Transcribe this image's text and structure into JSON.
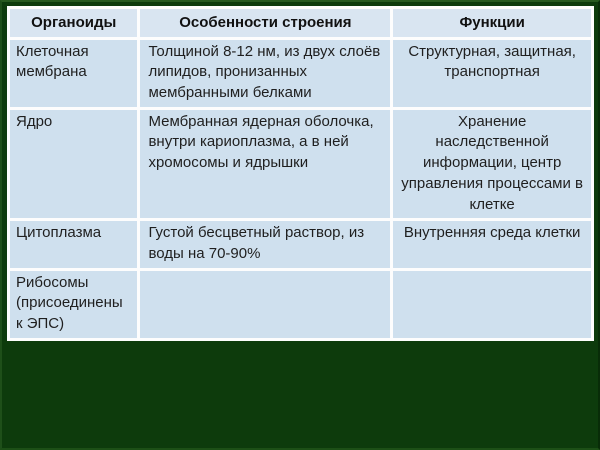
{
  "slide": {
    "background_color": "#0d3b0c",
    "table_border_color": "#fdfdfd",
    "header_bg_color": "#d9e5f1",
    "cell_bg_color": "#cfe0ee",
    "text_color": "#1f1f1f"
  },
  "table": {
    "columns": [
      "Органоиды",
      "Особенности строения",
      "Функции"
    ],
    "rows": [
      {
        "organoid": "Клеточная\nмембрана",
        "structure": "Толщиной 8-12 нм, из двух слоёв\nлипидов, пронизанных\nмембранными белками",
        "function": "Структурная, защитная,\nтранспортная"
      },
      {
        "organoid": "Ядро",
        "structure": "Мембранная ядерная оболочка,\nвнутри кариоплазма, а в ней\nхромосомы и ядрышки",
        "function": "Хранение наследственной\nинформации, центр\nуправления процессами в\nклетке"
      },
      {
        "organoid": "Цитоплазма",
        "structure": "Густой бесцветный раствор, из\nводы на 70-90%",
        "function": "Внутренняя среда клетки"
      },
      {
        "organoid": "Рибосомы\n(присоединены\nк ЭПС)",
        "structure": "",
        "function": ""
      }
    ]
  }
}
